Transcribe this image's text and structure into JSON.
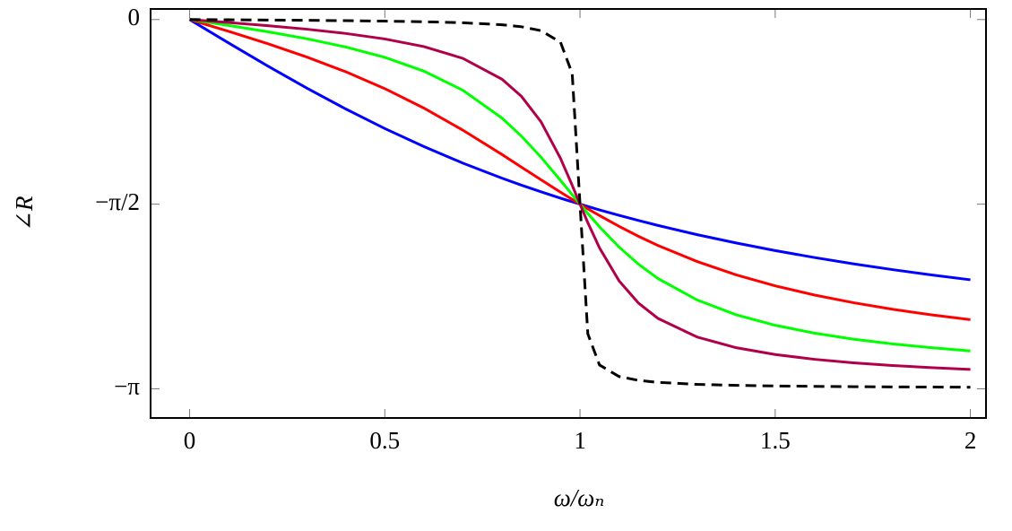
{
  "chart_data": {
    "type": "line",
    "x_label": "ω/ωₙ",
    "y_label": "∠R",
    "x": [
      0,
      0.1,
      0.2,
      0.3,
      0.4,
      0.5,
      0.6,
      0.7,
      0.8,
      0.85,
      0.9,
      0.95,
      0.98,
      1,
      1.02,
      1.05,
      1.1,
      1.15,
      1.2,
      1.3,
      1.4,
      1.5,
      1.6,
      1.7,
      1.8,
      1.9,
      2
    ],
    "series": [
      {
        "color": "#0000ff",
        "dash": false,
        "values": [
          0,
          -0.1993,
          -0.3948,
          -0.5829,
          -0.761,
          -0.9273,
          -1.0808,
          -1.2215,
          -1.3495,
          -1.409,
          -1.4656,
          -1.5196,
          -1.5506,
          -1.5708,
          -1.5906,
          -1.6196,
          -1.666,
          -1.71,
          -1.7521,
          -1.8302,
          -1.9011,
          -1.9656,
          -2.0244,
          -2.0782,
          -2.1274,
          -2.1726,
          -2.2143
        ]
      },
      {
        "color": "#ff0000",
        "dash": false,
        "values": [
          0,
          -0.1007,
          -0.2054,
          -0.3186,
          -0.4444,
          -0.588,
          -0.7532,
          -0.9414,
          -1.1479,
          -1.2558,
          -1.3628,
          -1.4685,
          -1.5304,
          -1.5708,
          -1.6104,
          -1.6681,
          -1.7594,
          -1.8444,
          -1.9229,
          -2.0586,
          -2.1721,
          -2.2655,
          -2.3435,
          -2.409,
          -2.4649,
          -2.5123,
          -2.5536
        ]
      },
      {
        "color": "#00ff00",
        "dash": false,
        "values": [
          0,
          -0.0505,
          -0.1038,
          -0.1633,
          -0.2337,
          -0.3218,
          -0.4389,
          -0.6016,
          -0.838,
          -0.9918,
          -1.1709,
          -1.3684,
          -1.4901,
          -1.5708,
          -1.6499,
          -1.7637,
          -1.9358,
          -2.0817,
          -2.2037,
          -2.386,
          -2.5116,
          -2.6012,
          -2.6679,
          -2.7192,
          -2.7595,
          -2.7922,
          -2.8198
        ]
      },
      {
        "color": "#b0004a",
        "dash": false,
        "values": [
          0,
          -0.0252,
          -0.052,
          -0.0822,
          -0.1185,
          -0.1651,
          -0.2302,
          -0.3305,
          -0.5071,
          -0.6533,
          -0.8695,
          -1.1812,
          -1.4105,
          -1.5708,
          -1.7279,
          -1.9431,
          -2.2229,
          -2.413,
          -2.5431,
          -2.7014,
          -2.792,
          -2.8501,
          -2.8906,
          -2.9204,
          -2.9433,
          -2.9616,
          -2.9765
        ]
      },
      {
        "color": "#000000",
        "dash": true,
        "values": [
          0,
          -0.002,
          -0.0042,
          -0.0066,
          -0.0095,
          -0.0133,
          -0.0187,
          -0.0274,
          -0.0444,
          -0.0612,
          -0.0944,
          -0.1925,
          -0.4596,
          -1.5708,
          -2.6742,
          -2.9395,
          -3.0372,
          -3.0704,
          -3.0871,
          -3.1039,
          -3.1124,
          -3.1176,
          -3.1211,
          -3.1236,
          -3.1255,
          -3.127,
          -3.1283
        ]
      }
    ],
    "xlim": [
      -0.1,
      2.04
    ],
    "ylim": [
      -3.39,
      0.09
    ],
    "xticks": [
      0,
      0.5,
      1,
      1.5,
      2
    ],
    "yticks": [
      {
        "value": -3.1416,
        "label": "−π"
      },
      {
        "value": -1.5708,
        "label": "−π/2"
      },
      0
    ]
  }
}
